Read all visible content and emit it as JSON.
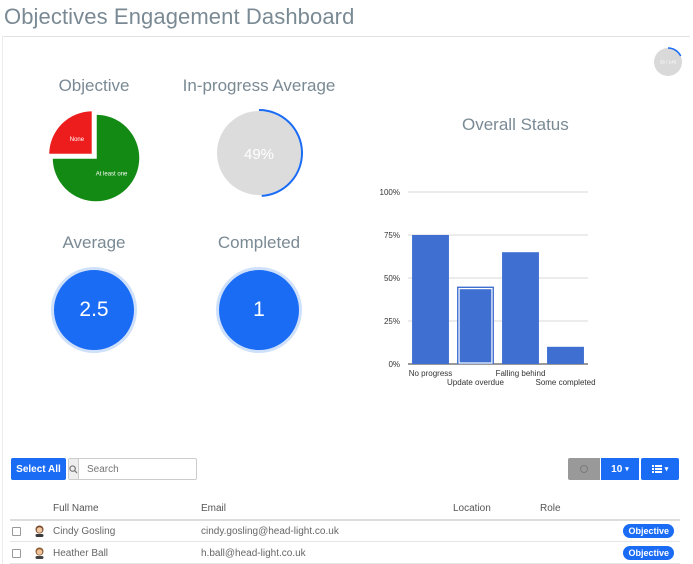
{
  "page": {
    "title": "Objectives Engagement Dashboard"
  },
  "progress_indicator": {
    "label": "26 / 145",
    "fraction": 0.18
  },
  "widgets": {
    "objective": {
      "title": "Objective",
      "chart_data": {
        "type": "pie",
        "slices": [
          {
            "label": "None",
            "value": 25,
            "color": "#ee1d1d"
          },
          {
            "label": "At least one",
            "value": 75,
            "color": "#138a13"
          }
        ]
      }
    },
    "in_progress_average": {
      "title": "In-progress Average",
      "value_label": "49%",
      "fraction": 0.49
    },
    "average": {
      "title": "Average",
      "value": "2.5"
    },
    "completed": {
      "title": "Completed",
      "value": "1"
    }
  },
  "overall_status": {
    "title": "Overall Status",
    "chart_data": {
      "type": "bar",
      "categories": [
        "No progress",
        "Update overdue",
        "Falling behind",
        "Some completed"
      ],
      "values": [
        75,
        45,
        65,
        10
      ],
      "ylim": [
        0,
        100
      ],
      "yticks": [
        "0%",
        "25%",
        "50%",
        "75%",
        "100%"
      ],
      "color": "#3f6fd0",
      "selected_index": 1,
      "grid": true
    }
  },
  "toolbar": {
    "select_all": "Select All",
    "search_placeholder": "Search",
    "page_size": "10",
    "list_icon": "list-icon"
  },
  "table": {
    "columns": [
      "Full Name",
      "Email",
      "Location",
      "Role"
    ],
    "rows": [
      {
        "name": "Cindy Gosling",
        "email": "cindy.gosling@head-light.co.uk",
        "location": "",
        "role": "",
        "badge": "Objective"
      },
      {
        "name": "Heather Ball",
        "email": "h.ball@head-light.co.uk",
        "location": "",
        "role": "",
        "badge": "Objective"
      }
    ]
  }
}
